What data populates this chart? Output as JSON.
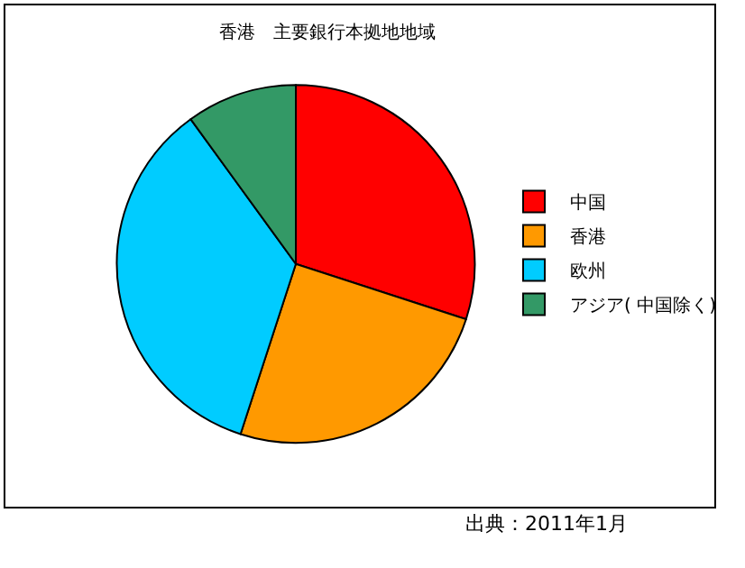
{
  "chart_data": {
    "type": "pie",
    "title": "香港　主要銀行本拠地地域",
    "categories": [
      "中国",
      "香港",
      "欧州",
      "アジア( 中国除く)"
    ],
    "values": [
      30,
      25,
      35,
      10
    ],
    "colors": [
      "#ff0000",
      "#ff9900",
      "#00ccff",
      "#339966"
    ],
    "legend": "right",
    "annotations": [
      "出典：2011年1月"
    ]
  }
}
